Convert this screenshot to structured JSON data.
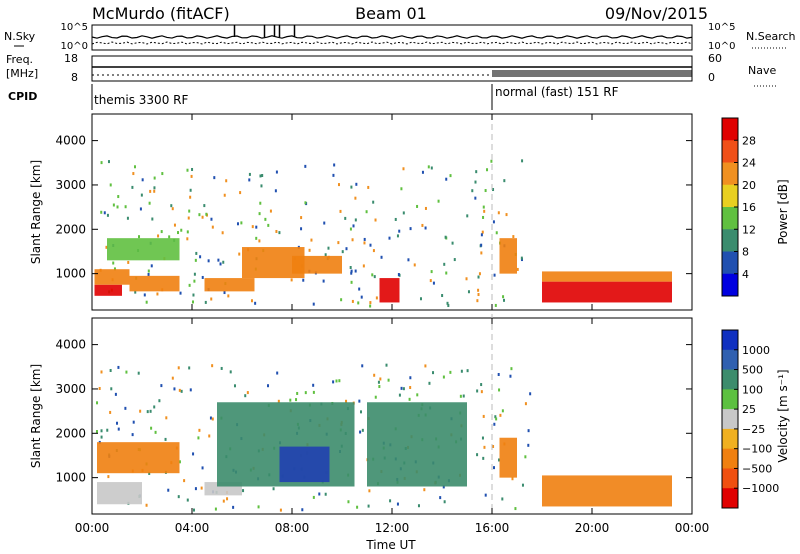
{
  "header": {
    "station": "McMurdo (fitACF)",
    "beam": "Beam 01",
    "date": "09/Nov/2015"
  },
  "left_labels": {
    "nsky": "N.Sky",
    "nsky_ticks": [
      "10^5",
      "10^0"
    ],
    "freq_line1": "Freq.",
    "freq_line2": "[MHz]",
    "freq_ticks": [
      "18",
      "8"
    ],
    "cpid": "CPID"
  },
  "right_labels": {
    "nsearch": "N.Search",
    "nsearch_ticks": [
      "10^5",
      "10^0"
    ],
    "nave": "Nave",
    "nave_ticks": [
      "60",
      "0"
    ]
  },
  "cpid_bar": {
    "mode1": "themis 3300 RF",
    "mode2": "normal (fast) 151 RF",
    "switch_time_h": 16.0
  },
  "x_axis": {
    "label": "Time UT",
    "ticks": [
      "00:00",
      "04:00",
      "08:00",
      "12:00",
      "16:00",
      "20:00",
      "00:00"
    ],
    "range_h": [
      0,
      24
    ]
  },
  "power_panel": {
    "ylabel": "Slant Range [km]",
    "yticks": [
      "1000",
      "2000",
      "3000",
      "4000"
    ],
    "ylim": [
      180,
      4600
    ],
    "cbar_label": "Power [dB]",
    "cbar_ticks": [
      "4",
      "8",
      "12",
      "16",
      "20",
      "24",
      "28"
    ],
    "cbar_colors": [
      "#0000e0",
      "#2050b0",
      "#3a8c6e",
      "#60c040",
      "#e8d020",
      "#f09020",
      "#f05018",
      "#e00000"
    ]
  },
  "velocity_panel": {
    "ylabel": "Slant Range [km]",
    "yticks": [
      "1000",
      "2000",
      "3000",
      "4000"
    ],
    "ylim": [
      180,
      4600
    ],
    "cbar_label": "Velocity [m s⁻¹]",
    "cbar_ticks": [
      "1000",
      "500",
      "100",
      "25",
      "−25",
      "−100",
      "−500",
      "−1000"
    ],
    "cbar_colors": [
      "#1030c0",
      "#3060b0",
      "#3c8c6c",
      "#5cc040",
      "#c8c8c8",
      "#f0b020",
      "#f08010",
      "#f05010",
      "#e00000"
    ]
  },
  "chart_data": [
    {
      "type": "heatmap",
      "name": "Power",
      "x_units": "hours UT",
      "y_units": "km",
      "xlim": [
        0,
        24
      ],
      "ylim": [
        180,
        4600
      ],
      "regions": [
        {
          "t": [
            0.1,
            1.2
          ],
          "r": [
            500,
            750
          ],
          "level": "red"
        },
        {
          "t": [
            0.1,
            1.5
          ],
          "r": [
            750,
            1100
          ],
          "level": "orange"
        },
        {
          "t": [
            0.6,
            3.5
          ],
          "r": [
            1300,
            1800
          ],
          "level": "green"
        },
        {
          "t": [
            1.5,
            3.5
          ],
          "r": [
            600,
            950
          ],
          "level": "orange"
        },
        {
          "t": [
            4.5,
            6.5
          ],
          "r": [
            600,
            900
          ],
          "level": "orange"
        },
        {
          "t": [
            6.0,
            8.5
          ],
          "r": [
            900,
            1600
          ],
          "level": "orange"
        },
        {
          "t": [
            8.0,
            10.0
          ],
          "r": [
            1000,
            1400
          ],
          "level": "orange"
        },
        {
          "t": [
            11.5,
            12.3
          ],
          "r": [
            350,
            900
          ],
          "level": "red"
        },
        {
          "t": [
            16.3,
            17.0
          ],
          "r": [
            1000,
            1800
          ],
          "level": "orange"
        },
        {
          "t": [
            18.0,
            23.2
          ],
          "r": [
            350,
            820
          ],
          "level": "red"
        },
        {
          "t": [
            18.0,
            23.2
          ],
          "r": [
            820,
            1050
          ],
          "level": "orange"
        }
      ]
    },
    {
      "type": "heatmap",
      "name": "Velocity",
      "x_units": "hours UT",
      "y_units": "km",
      "xlim": [
        0,
        24
      ],
      "ylim": [
        180,
        4600
      ],
      "regions": [
        {
          "t": [
            0.2,
            2.0
          ],
          "r": [
            400,
            900
          ],
          "level": "grey"
        },
        {
          "t": [
            0.2,
            3.5
          ],
          "r": [
            1100,
            1800
          ],
          "level": "orange"
        },
        {
          "t": [
            4.5,
            6.0
          ],
          "r": [
            600,
            900
          ],
          "level": "grey"
        },
        {
          "t": [
            5.0,
            10.5
          ],
          "r": [
            800,
            2700
          ],
          "level": "teal"
        },
        {
          "t": [
            7.5,
            9.5
          ],
          "r": [
            900,
            1700
          ],
          "level": "blue"
        },
        {
          "t": [
            11.0,
            15.0
          ],
          "r": [
            800,
            2700
          ],
          "level": "teal"
        },
        {
          "t": [
            16.3,
            17.0
          ],
          "r": [
            1000,
            1900
          ],
          "level": "orange"
        },
        {
          "t": [
            18.0,
            23.2
          ],
          "r": [
            350,
            1050
          ],
          "level": "orange"
        }
      ]
    }
  ]
}
